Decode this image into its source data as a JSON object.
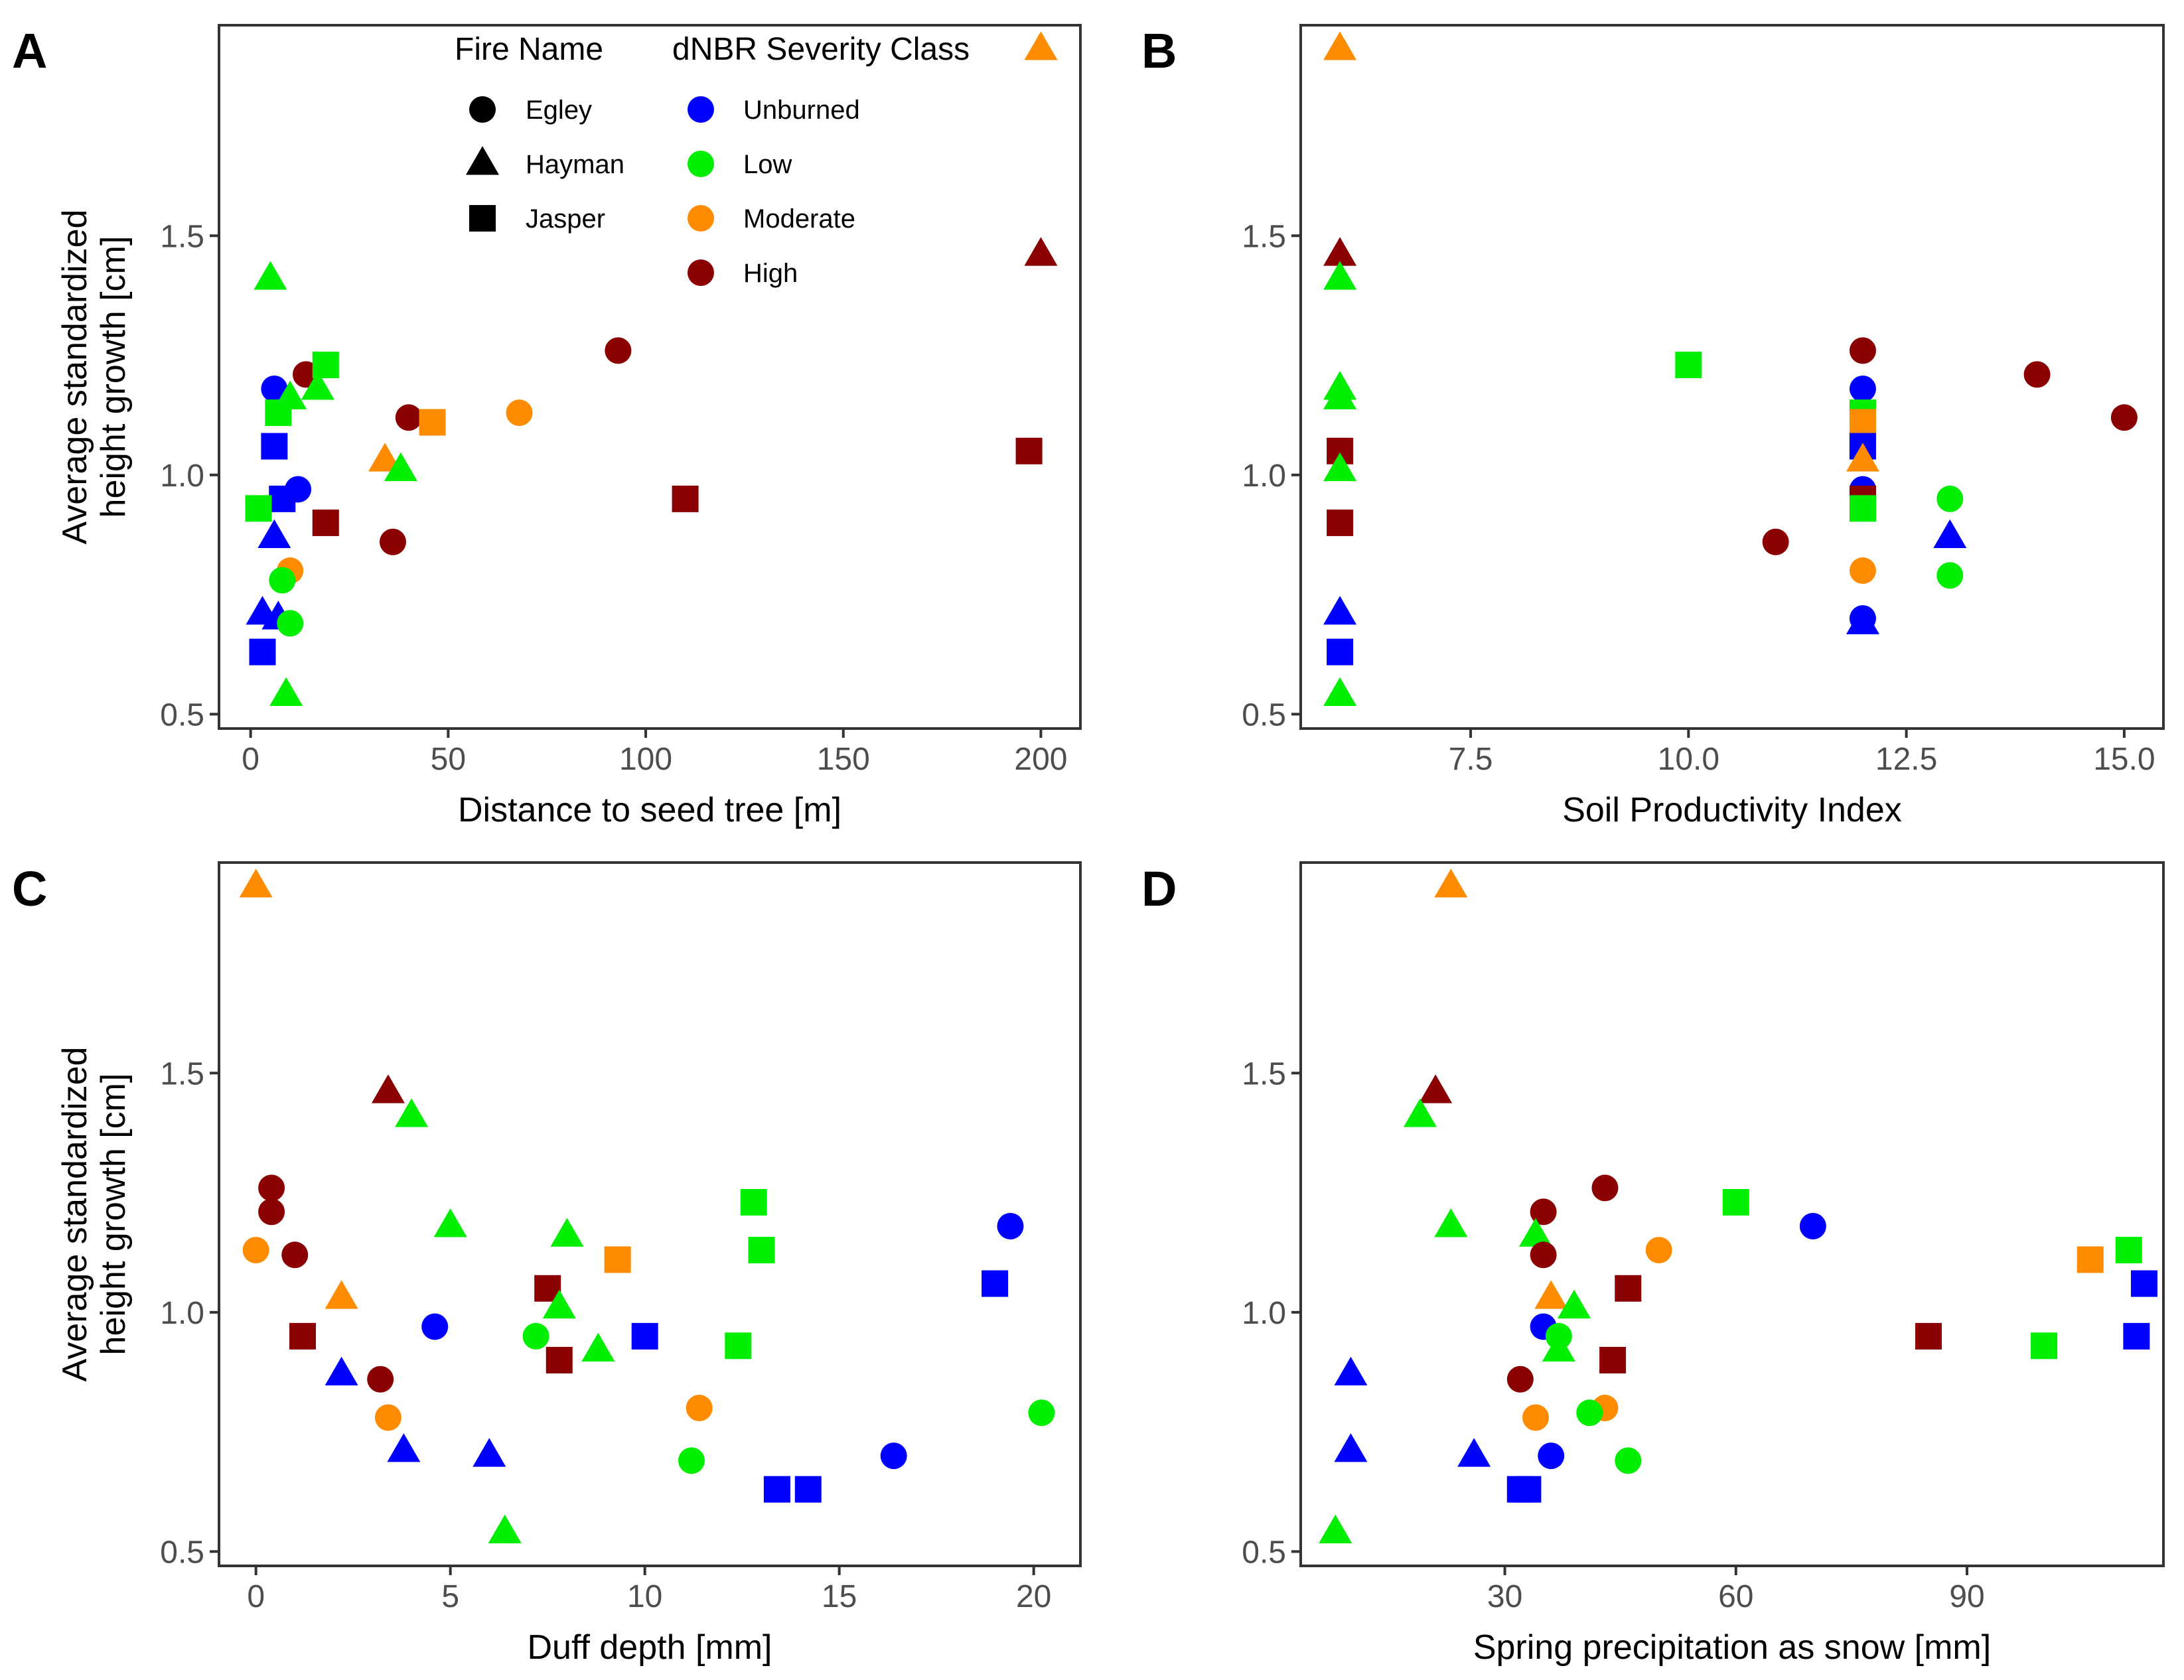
{
  "colors": {
    "Unburned": "#0000FF",
    "Low": "#00EE00",
    "Moderate": "#FF8C00",
    "High": "#8B0000"
  },
  "legend": {
    "fire_title": "Fire Name",
    "fires": [
      "Egley",
      "Hayman",
      "Jasper"
    ],
    "severity_title": "dNBR Severity Class",
    "classes": [
      "Unburned",
      "Low",
      "Moderate",
      "High"
    ]
  },
  "chart_data": [
    {
      "panel": "A",
      "type": "scatter",
      "xlabel": "Distance to seed tree [m]",
      "ylabel": [
        "Average standardized",
        "height growth [cm]"
      ],
      "xlim": [
        -8,
        210
      ],
      "ylim": [
        0.47,
        1.94
      ],
      "xticks": [
        0,
        50,
        100,
        150,
        200
      ],
      "xtick_labels": [
        "0",
        "50",
        "100",
        "150",
        "200"
      ],
      "yticks": [
        0.5,
        1.0,
        1.5
      ],
      "ytick_labels": [
        "0.5",
        "1.0",
        "1.5"
      ],
      "points": [
        {
          "x": 200,
          "y": 1.89,
          "fire": "Hayman",
          "cls": "Moderate"
        },
        {
          "x": 200,
          "y": 1.46,
          "fire": "Hayman",
          "cls": "High"
        },
        {
          "x": 5,
          "y": 1.41,
          "fire": "Hayman",
          "cls": "Low"
        },
        {
          "x": 93,
          "y": 1.26,
          "fire": "Egley",
          "cls": "High"
        },
        {
          "x": 14,
          "y": 1.21,
          "fire": "Egley",
          "cls": "High"
        },
        {
          "x": 19,
          "y": 1.23,
          "fire": "Jasper",
          "cls": "Low"
        },
        {
          "x": 6,
          "y": 1.18,
          "fire": "Egley",
          "cls": "Unburned"
        },
        {
          "x": 17,
          "y": 1.18,
          "fire": "Hayman",
          "cls": "Low"
        },
        {
          "x": 10,
          "y": 1.16,
          "fire": "Hayman",
          "cls": "Low"
        },
        {
          "x": 7,
          "y": 1.13,
          "fire": "Jasper",
          "cls": "Low"
        },
        {
          "x": 68,
          "y": 1.13,
          "fire": "Egley",
          "cls": "Moderate"
        },
        {
          "x": 40,
          "y": 1.12,
          "fire": "Egley",
          "cls": "High"
        },
        {
          "x": 46,
          "y": 1.11,
          "fire": "Jasper",
          "cls": "Moderate"
        },
        {
          "x": 6,
          "y": 1.06,
          "fire": "Jasper",
          "cls": "Unburned"
        },
        {
          "x": 197,
          "y": 1.05,
          "fire": "Jasper",
          "cls": "High"
        },
        {
          "x": 34,
          "y": 1.03,
          "fire": "Hayman",
          "cls": "Moderate"
        },
        {
          "x": 38,
          "y": 1.01,
          "fire": "Hayman",
          "cls": "Low"
        },
        {
          "x": 12,
          "y": 0.97,
          "fire": "Egley",
          "cls": "Unburned"
        },
        {
          "x": 110,
          "y": 0.95,
          "fire": "Jasper",
          "cls": "High"
        },
        {
          "x": 8,
          "y": 0.95,
          "fire": "Jasper",
          "cls": "Unburned"
        },
        {
          "x": 2,
          "y": 0.93,
          "fire": "Jasper",
          "cls": "Low"
        },
        {
          "x": 19,
          "y": 0.9,
          "fire": "Jasper",
          "cls": "High"
        },
        {
          "x": 6,
          "y": 0.87,
          "fire": "Hayman",
          "cls": "Unburned"
        },
        {
          "x": 36,
          "y": 0.86,
          "fire": "Egley",
          "cls": "High"
        },
        {
          "x": 10,
          "y": 0.8,
          "fire": "Egley",
          "cls": "Moderate"
        },
        {
          "x": 8,
          "y": 0.78,
          "fire": "Egley",
          "cls": "Low"
        },
        {
          "x": 3,
          "y": 0.71,
          "fire": "Hayman",
          "cls": "Unburned"
        },
        {
          "x": 7,
          "y": 0.7,
          "fire": "Hayman",
          "cls": "Unburned"
        },
        {
          "x": 10,
          "y": 0.69,
          "fire": "Egley",
          "cls": "Low"
        },
        {
          "x": 3,
          "y": 0.63,
          "fire": "Jasper",
          "cls": "Unburned"
        },
        {
          "x": 9,
          "y": 0.54,
          "fire": "Hayman",
          "cls": "Low"
        }
      ]
    },
    {
      "panel": "B",
      "type": "scatter",
      "xlabel": "Soil Productivity Index",
      "ylabel": null,
      "xlim": [
        5.55,
        15.45
      ],
      "ylim": [
        0.47,
        1.94
      ],
      "xticks": [
        7.5,
        10.0,
        12.5,
        15.0
      ],
      "xtick_labels": [
        "7.5",
        "10.0",
        "12.5",
        "15.0"
      ],
      "yticks": [
        0.5,
        1.0,
        1.5
      ],
      "ytick_labels": [
        "0.5",
        "1.0",
        "1.5"
      ],
      "points": [
        {
          "x": 6,
          "y": 1.89,
          "fire": "Hayman",
          "cls": "Moderate"
        },
        {
          "x": 6,
          "y": 1.46,
          "fire": "Hayman",
          "cls": "High"
        },
        {
          "x": 6,
          "y": 1.41,
          "fire": "Hayman",
          "cls": "Low"
        },
        {
          "x": 6,
          "y": 1.18,
          "fire": "Hayman",
          "cls": "Low"
        },
        {
          "x": 6,
          "y": 1.16,
          "fire": "Hayman",
          "cls": "Low"
        },
        {
          "x": 6,
          "y": 1.05,
          "fire": "Jasper",
          "cls": "High"
        },
        {
          "x": 6,
          "y": 1.01,
          "fire": "Hayman",
          "cls": "Low"
        },
        {
          "x": 6,
          "y": 0.9,
          "fire": "Jasper",
          "cls": "High"
        },
        {
          "x": 6,
          "y": 0.71,
          "fire": "Hayman",
          "cls": "Unburned"
        },
        {
          "x": 6,
          "y": 0.63,
          "fire": "Jasper",
          "cls": "Unburned"
        },
        {
          "x": 6,
          "y": 0.54,
          "fire": "Hayman",
          "cls": "Low"
        },
        {
          "x": 10,
          "y": 1.23,
          "fire": "Jasper",
          "cls": "Low"
        },
        {
          "x": 11,
          "y": 0.86,
          "fire": "Egley",
          "cls": "High"
        },
        {
          "x": 12,
          "y": 1.26,
          "fire": "Egley",
          "cls": "High"
        },
        {
          "x": 12,
          "y": 1.18,
          "fire": "Egley",
          "cls": "Unburned"
        },
        {
          "x": 12,
          "y": 1.13,
          "fire": "Jasper",
          "cls": "Low"
        },
        {
          "x": 12,
          "y": 1.11,
          "fire": "Jasper",
          "cls": "Moderate"
        },
        {
          "x": 12,
          "y": 1.06,
          "fire": "Jasper",
          "cls": "Unburned"
        },
        {
          "x": 12,
          "y": 1.03,
          "fire": "Hayman",
          "cls": "Moderate"
        },
        {
          "x": 12,
          "y": 0.97,
          "fire": "Egley",
          "cls": "Unburned"
        },
        {
          "x": 12,
          "y": 0.95,
          "fire": "Jasper",
          "cls": "High"
        },
        {
          "x": 12,
          "y": 0.93,
          "fire": "Jasper",
          "cls": "Low"
        },
        {
          "x": 12,
          "y": 0.8,
          "fire": "Egley",
          "cls": "Moderate"
        },
        {
          "x": 12,
          "y": 0.7,
          "fire": "Egley",
          "cls": "Unburned"
        },
        {
          "x": 12,
          "y": 0.69,
          "fire": "Hayman",
          "cls": "Unburned"
        },
        {
          "x": 13,
          "y": 0.95,
          "fire": "Egley",
          "cls": "Low"
        },
        {
          "x": 13,
          "y": 0.87,
          "fire": "Hayman",
          "cls": "Unburned"
        },
        {
          "x": 13,
          "y": 0.79,
          "fire": "Egley",
          "cls": "Low"
        },
        {
          "x": 14,
          "y": 1.21,
          "fire": "Egley",
          "cls": "High"
        },
        {
          "x": 15,
          "y": 1.12,
          "fire": "Egley",
          "cls": "High"
        }
      ]
    },
    {
      "panel": "C",
      "type": "scatter",
      "xlabel": "Duff depth [mm]",
      "ylabel": [
        "Average standardized",
        "height growth [cm]"
      ],
      "xlim": [
        -0.95,
        21.2
      ],
      "ylim": [
        0.47,
        1.94
      ],
      "xticks": [
        0,
        5,
        10,
        15,
        20
      ],
      "xtick_labels": [
        "0",
        "5",
        "10",
        "15",
        "20"
      ],
      "yticks": [
        0.5,
        1.0,
        1.5
      ],
      "ytick_labels": [
        "0.5",
        "1.0",
        "1.5"
      ],
      "points": [
        {
          "x": 0.0,
          "y": 1.89,
          "fire": "Hayman",
          "cls": "Moderate"
        },
        {
          "x": 3.4,
          "y": 1.46,
          "fire": "Hayman",
          "cls": "High"
        },
        {
          "x": 4.0,
          "y": 1.41,
          "fire": "Hayman",
          "cls": "Low"
        },
        {
          "x": 0.4,
          "y": 1.26,
          "fire": "Egley",
          "cls": "High"
        },
        {
          "x": 12.8,
          "y": 1.23,
          "fire": "Jasper",
          "cls": "Low"
        },
        {
          "x": 0.4,
          "y": 1.21,
          "fire": "Egley",
          "cls": "High"
        },
        {
          "x": 19.4,
          "y": 1.18,
          "fire": "Egley",
          "cls": "Unburned"
        },
        {
          "x": 5.0,
          "y": 1.18,
          "fire": "Hayman",
          "cls": "Low"
        },
        {
          "x": 8.0,
          "y": 1.16,
          "fire": "Hayman",
          "cls": "Low"
        },
        {
          "x": 0.0,
          "y": 1.13,
          "fire": "Egley",
          "cls": "Moderate"
        },
        {
          "x": 13.0,
          "y": 1.13,
          "fire": "Jasper",
          "cls": "Low"
        },
        {
          "x": 1.0,
          "y": 1.12,
          "fire": "Egley",
          "cls": "High"
        },
        {
          "x": 9.3,
          "y": 1.11,
          "fire": "Jasper",
          "cls": "Moderate"
        },
        {
          "x": 19.0,
          "y": 1.06,
          "fire": "Jasper",
          "cls": "Unburned"
        },
        {
          "x": 7.5,
          "y": 1.05,
          "fire": "Jasper",
          "cls": "High"
        },
        {
          "x": 2.2,
          "y": 1.03,
          "fire": "Hayman",
          "cls": "Moderate"
        },
        {
          "x": 7.8,
          "y": 1.01,
          "fire": "Hayman",
          "cls": "Low"
        },
        {
          "x": 4.6,
          "y": 0.97,
          "fire": "Egley",
          "cls": "Unburned"
        },
        {
          "x": 1.2,
          "y": 0.95,
          "fire": "Jasper",
          "cls": "High"
        },
        {
          "x": 10.0,
          "y": 0.95,
          "fire": "Jasper",
          "cls": "Unburned"
        },
        {
          "x": 7.2,
          "y": 0.95,
          "fire": "Egley",
          "cls": "Low"
        },
        {
          "x": 12.4,
          "y": 0.93,
          "fire": "Jasper",
          "cls": "Low"
        },
        {
          "x": 8.8,
          "y": 0.92,
          "fire": "Hayman",
          "cls": "Low"
        },
        {
          "x": 7.8,
          "y": 0.9,
          "fire": "Jasper",
          "cls": "High"
        },
        {
          "x": 2.2,
          "y": 0.87,
          "fire": "Hayman",
          "cls": "Unburned"
        },
        {
          "x": 3.2,
          "y": 0.86,
          "fire": "Egley",
          "cls": "High"
        },
        {
          "x": 11.4,
          "y": 0.8,
          "fire": "Egley",
          "cls": "Moderate"
        },
        {
          "x": 20.2,
          "y": 0.79,
          "fire": "Egley",
          "cls": "Low"
        },
        {
          "x": 3.4,
          "y": 0.78,
          "fire": "Egley",
          "cls": "Moderate"
        },
        {
          "x": 3.8,
          "y": 0.71,
          "fire": "Hayman",
          "cls": "Unburned"
        },
        {
          "x": 16.4,
          "y": 0.7,
          "fire": "Egley",
          "cls": "Unburned"
        },
        {
          "x": 6.0,
          "y": 0.7,
          "fire": "Hayman",
          "cls": "Unburned"
        },
        {
          "x": 11.2,
          "y": 0.69,
          "fire": "Egley",
          "cls": "Low"
        },
        {
          "x": 13.4,
          "y": 0.63,
          "fire": "Jasper",
          "cls": "Unburned"
        },
        {
          "x": 14.2,
          "y": 0.63,
          "fire": "Jasper",
          "cls": "Unburned"
        },
        {
          "x": 6.4,
          "y": 0.54,
          "fire": "Hayman",
          "cls": "Low"
        }
      ]
    },
    {
      "panel": "D",
      "type": "scatter",
      "xlabel": "Spring precipitation as snow [mm]",
      "ylabel": null,
      "xlim": [
        3.5,
        115.5
      ],
      "ylim": [
        0.47,
        1.94
      ],
      "xticks": [
        30,
        60,
        90
      ],
      "xtick_labels": [
        "30",
        "60",
        "90"
      ],
      "yticks": [
        0.5,
        1.0,
        1.5
      ],
      "ytick_labels": [
        "0.5",
        "1.0",
        "1.5"
      ],
      "points": [
        {
          "x": 23,
          "y": 1.89,
          "fire": "Hayman",
          "cls": "Moderate"
        },
        {
          "x": 21,
          "y": 1.46,
          "fire": "Hayman",
          "cls": "High"
        },
        {
          "x": 19,
          "y": 1.41,
          "fire": "Hayman",
          "cls": "Low"
        },
        {
          "x": 43,
          "y": 1.26,
          "fire": "Egley",
          "cls": "High"
        },
        {
          "x": 60,
          "y": 1.23,
          "fire": "Jasper",
          "cls": "Low"
        },
        {
          "x": 35,
          "y": 1.21,
          "fire": "Egley",
          "cls": "High"
        },
        {
          "x": 70,
          "y": 1.18,
          "fire": "Egley",
          "cls": "Unburned"
        },
        {
          "x": 23,
          "y": 1.18,
          "fire": "Hayman",
          "cls": "Low"
        },
        {
          "x": 34,
          "y": 1.16,
          "fire": "Hayman",
          "cls": "Low"
        },
        {
          "x": 50,
          "y": 1.13,
          "fire": "Egley",
          "cls": "Moderate"
        },
        {
          "x": 111,
          "y": 1.13,
          "fire": "Jasper",
          "cls": "Low"
        },
        {
          "x": 35,
          "y": 1.12,
          "fire": "Egley",
          "cls": "High"
        },
        {
          "x": 106,
          "y": 1.11,
          "fire": "Jasper",
          "cls": "Moderate"
        },
        {
          "x": 113,
          "y": 1.06,
          "fire": "Jasper",
          "cls": "Unburned"
        },
        {
          "x": 46,
          "y": 1.05,
          "fire": "Jasper",
          "cls": "High"
        },
        {
          "x": 36,
          "y": 1.03,
          "fire": "Hayman",
          "cls": "Moderate"
        },
        {
          "x": 39,
          "y": 1.01,
          "fire": "Hayman",
          "cls": "Low"
        },
        {
          "x": 35,
          "y": 0.97,
          "fire": "Egley",
          "cls": "Unburned"
        },
        {
          "x": 85,
          "y": 0.95,
          "fire": "Jasper",
          "cls": "High"
        },
        {
          "x": 112,
          "y": 0.95,
          "fire": "Jasper",
          "cls": "Unburned"
        },
        {
          "x": 37,
          "y": 0.95,
          "fire": "Egley",
          "cls": "Low"
        },
        {
          "x": 100,
          "y": 0.93,
          "fire": "Jasper",
          "cls": "Low"
        },
        {
          "x": 37,
          "y": 0.92,
          "fire": "Hayman",
          "cls": "Low"
        },
        {
          "x": 44,
          "y": 0.9,
          "fire": "Jasper",
          "cls": "High"
        },
        {
          "x": 10,
          "y": 0.87,
          "fire": "Hayman",
          "cls": "Unburned"
        },
        {
          "x": 32,
          "y": 0.86,
          "fire": "Egley",
          "cls": "High"
        },
        {
          "x": 43,
          "y": 0.8,
          "fire": "Egley",
          "cls": "Moderate"
        },
        {
          "x": 41,
          "y": 0.79,
          "fire": "Egley",
          "cls": "Low"
        },
        {
          "x": 34,
          "y": 0.78,
          "fire": "Egley",
          "cls": "Moderate"
        },
        {
          "x": 10,
          "y": 0.71,
          "fire": "Hayman",
          "cls": "Unburned"
        },
        {
          "x": 36,
          "y": 0.7,
          "fire": "Egley",
          "cls": "Unburned"
        },
        {
          "x": 26,
          "y": 0.7,
          "fire": "Hayman",
          "cls": "Unburned"
        },
        {
          "x": 46,
          "y": 0.69,
          "fire": "Egley",
          "cls": "Low"
        },
        {
          "x": 32,
          "y": 0.63,
          "fire": "Jasper",
          "cls": "Unburned"
        },
        {
          "x": 33,
          "y": 0.63,
          "fire": "Jasper",
          "cls": "Unburned"
        },
        {
          "x": 8,
          "y": 0.54,
          "fire": "Hayman",
          "cls": "Low"
        }
      ]
    }
  ]
}
